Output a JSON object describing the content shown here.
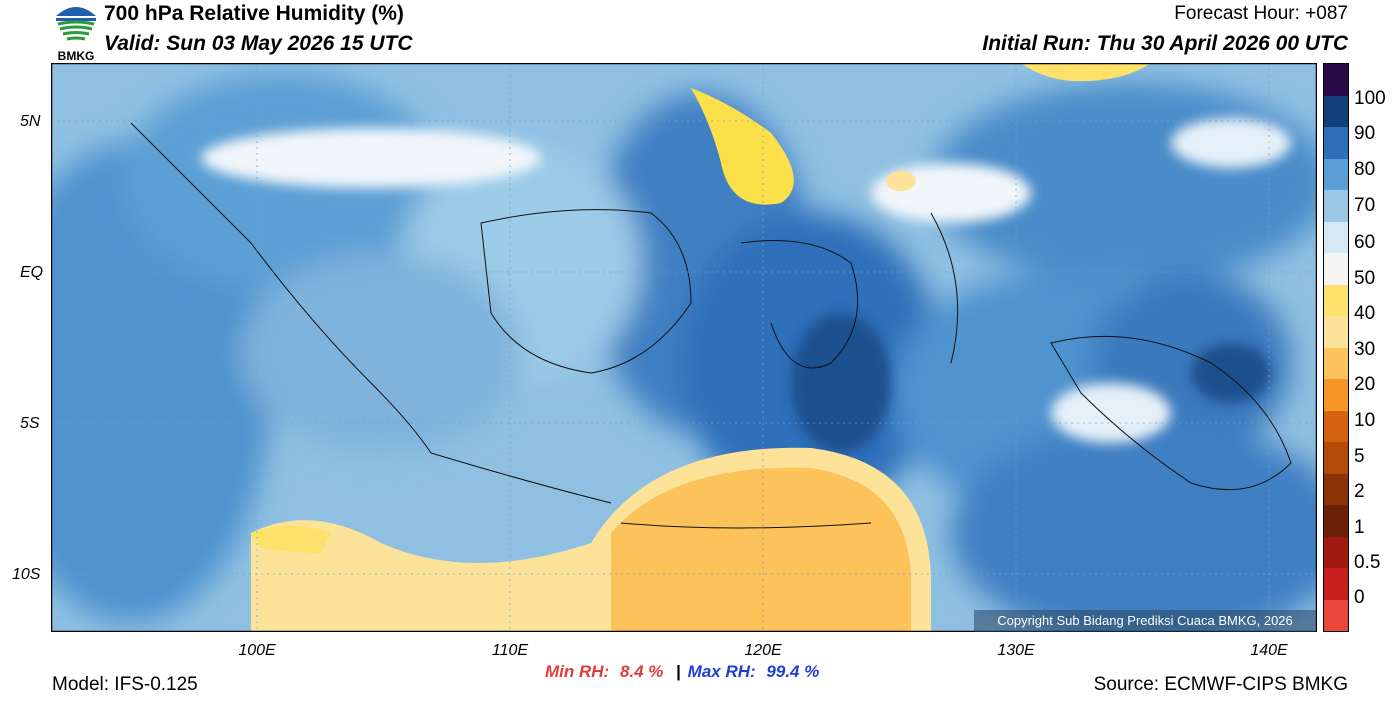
{
  "header": {
    "title": "700 hPa Relative Humidity (%)",
    "valid": "Valid: Sun 03 May 2026 15 UTC",
    "forecast_hour": "Forecast Hour: +087",
    "initial_run": "Initial Run: Thu 30 April 2026 00 UTC",
    "logo_text": "BMKG"
  },
  "axes": {
    "lat_labels": [
      "5N",
      "EQ",
      "5S",
      "10S"
    ],
    "lon_labels": [
      "100E",
      "110E",
      "120E",
      "130E",
      "140E"
    ]
  },
  "colorbar": {
    "labels": [
      "100",
      "90",
      "80",
      "70",
      "60",
      "50",
      "40",
      "30",
      "20",
      "10",
      "5",
      "2",
      "1",
      "0.5",
      "0"
    ],
    "colors": [
      "#e8473a",
      "#c81e1e",
      "#a0180f",
      "#6b2208",
      "#8a3208",
      "#b44a0a",
      "#d4620e",
      "#f59528",
      "#fbc35a",
      "#fde39a",
      "#fee16a",
      "#f5f5f5",
      "#d6e8f4",
      "#9cc7e4",
      "#5a9fd4",
      "#2f6fba",
      "#123f79",
      "#2b0a4a"
    ]
  },
  "stats": {
    "min_label": "Min RH:",
    "min_value": "8.4 %",
    "separator": "|",
    "max_label": "Max RH:",
    "max_value": "99.4 %"
  },
  "footer": {
    "model": "Model: IFS-0.125",
    "source": "Source: ECMWF-CIPS BMKG",
    "copyright": "Copyright Sub Bidang Prediksi Cuaca BMKG, 2026"
  }
}
